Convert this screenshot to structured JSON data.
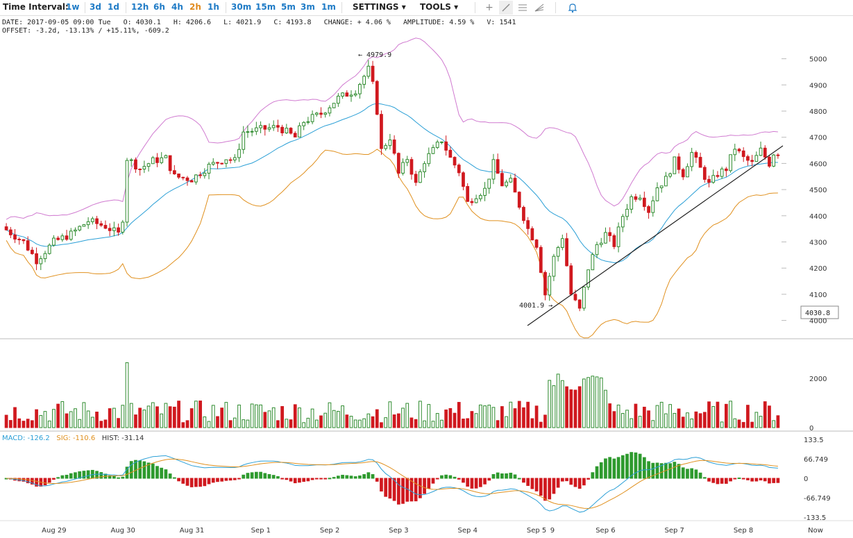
{
  "toolbar": {
    "time_interval_label": "Time Interval:",
    "intervals": [
      "1w",
      "3d",
      "1d",
      "12h",
      "6h",
      "4h",
      "2h",
      "1h",
      "30m",
      "15m",
      "5m",
      "3m",
      "1m"
    ],
    "active_interval": "2h",
    "settings_label": "SETTINGS",
    "tools_label": "TOOLS",
    "icons": [
      "crosshair-icon",
      "trendline-icon",
      "fib-lines-icon",
      "pitchfork-icon",
      "alert-bell-icon"
    ]
  },
  "info": {
    "line1": "DATE: 2017-09-05 09:00 Tue   O: 4030.1   H: 4206.6   L: 4021.9   C: 4193.8   CHANGE: + 4.06 %   AMPLITUDE: 4.59 %   V: 1541",
    "line2": "OFFSET: -3.2d, -13.13% / +15.11%, -609.2"
  },
  "macd_legend": {
    "macd_label": "MACD:",
    "macd_value": "-126.2",
    "sig_label": "SIG:",
    "sig_value": "-110.6",
    "hist_label": "HIST:",
    "hist_value": "-31.14"
  },
  "colors": {
    "up": "#2e8b2e",
    "down": "#d0191f",
    "upper_band": "#d07ad0",
    "middle_band": "#2a9fd6",
    "lower_band": "#e0901e",
    "macd_line": "#2a9fd6",
    "signal_line": "#e0901e",
    "hist_pos": "#2e9a2e",
    "hist_neg": "#d0191f"
  },
  "chart_data": {
    "type": "candlestick",
    "price_axis": {
      "ylim": [
        3930,
        5060
      ],
      "ticks": [
        4000,
        4100,
        4200,
        4300,
        4400,
        4500,
        4600,
        4700,
        4800,
        4900,
        5000
      ]
    },
    "volume_axis": {
      "ticks": [
        0,
        2000
      ]
    },
    "macd_axis": {
      "ticks": [
        "133.5",
        "66.749",
        "0",
        "-66.749",
        "-133.5"
      ]
    },
    "x_ticks": [
      "Aug 29",
      "Aug 30",
      "Aug 31",
      "Sep 1",
      "Sep 2",
      "Sep 3",
      "Sep 4",
      "Sep 5",
      "9",
      "Sep 6",
      "Sep 7",
      "Sep 8",
      "Now"
    ],
    "annotations": {
      "high": "4979.9",
      "low": "4001.9",
      "current_price": "4030.8"
    },
    "candles": [],
    "volume": [],
    "macd": [],
    "signal": [],
    "histogram": [],
    "bollinger": {
      "upper": [],
      "middle": [],
      "lower": []
    }
  }
}
